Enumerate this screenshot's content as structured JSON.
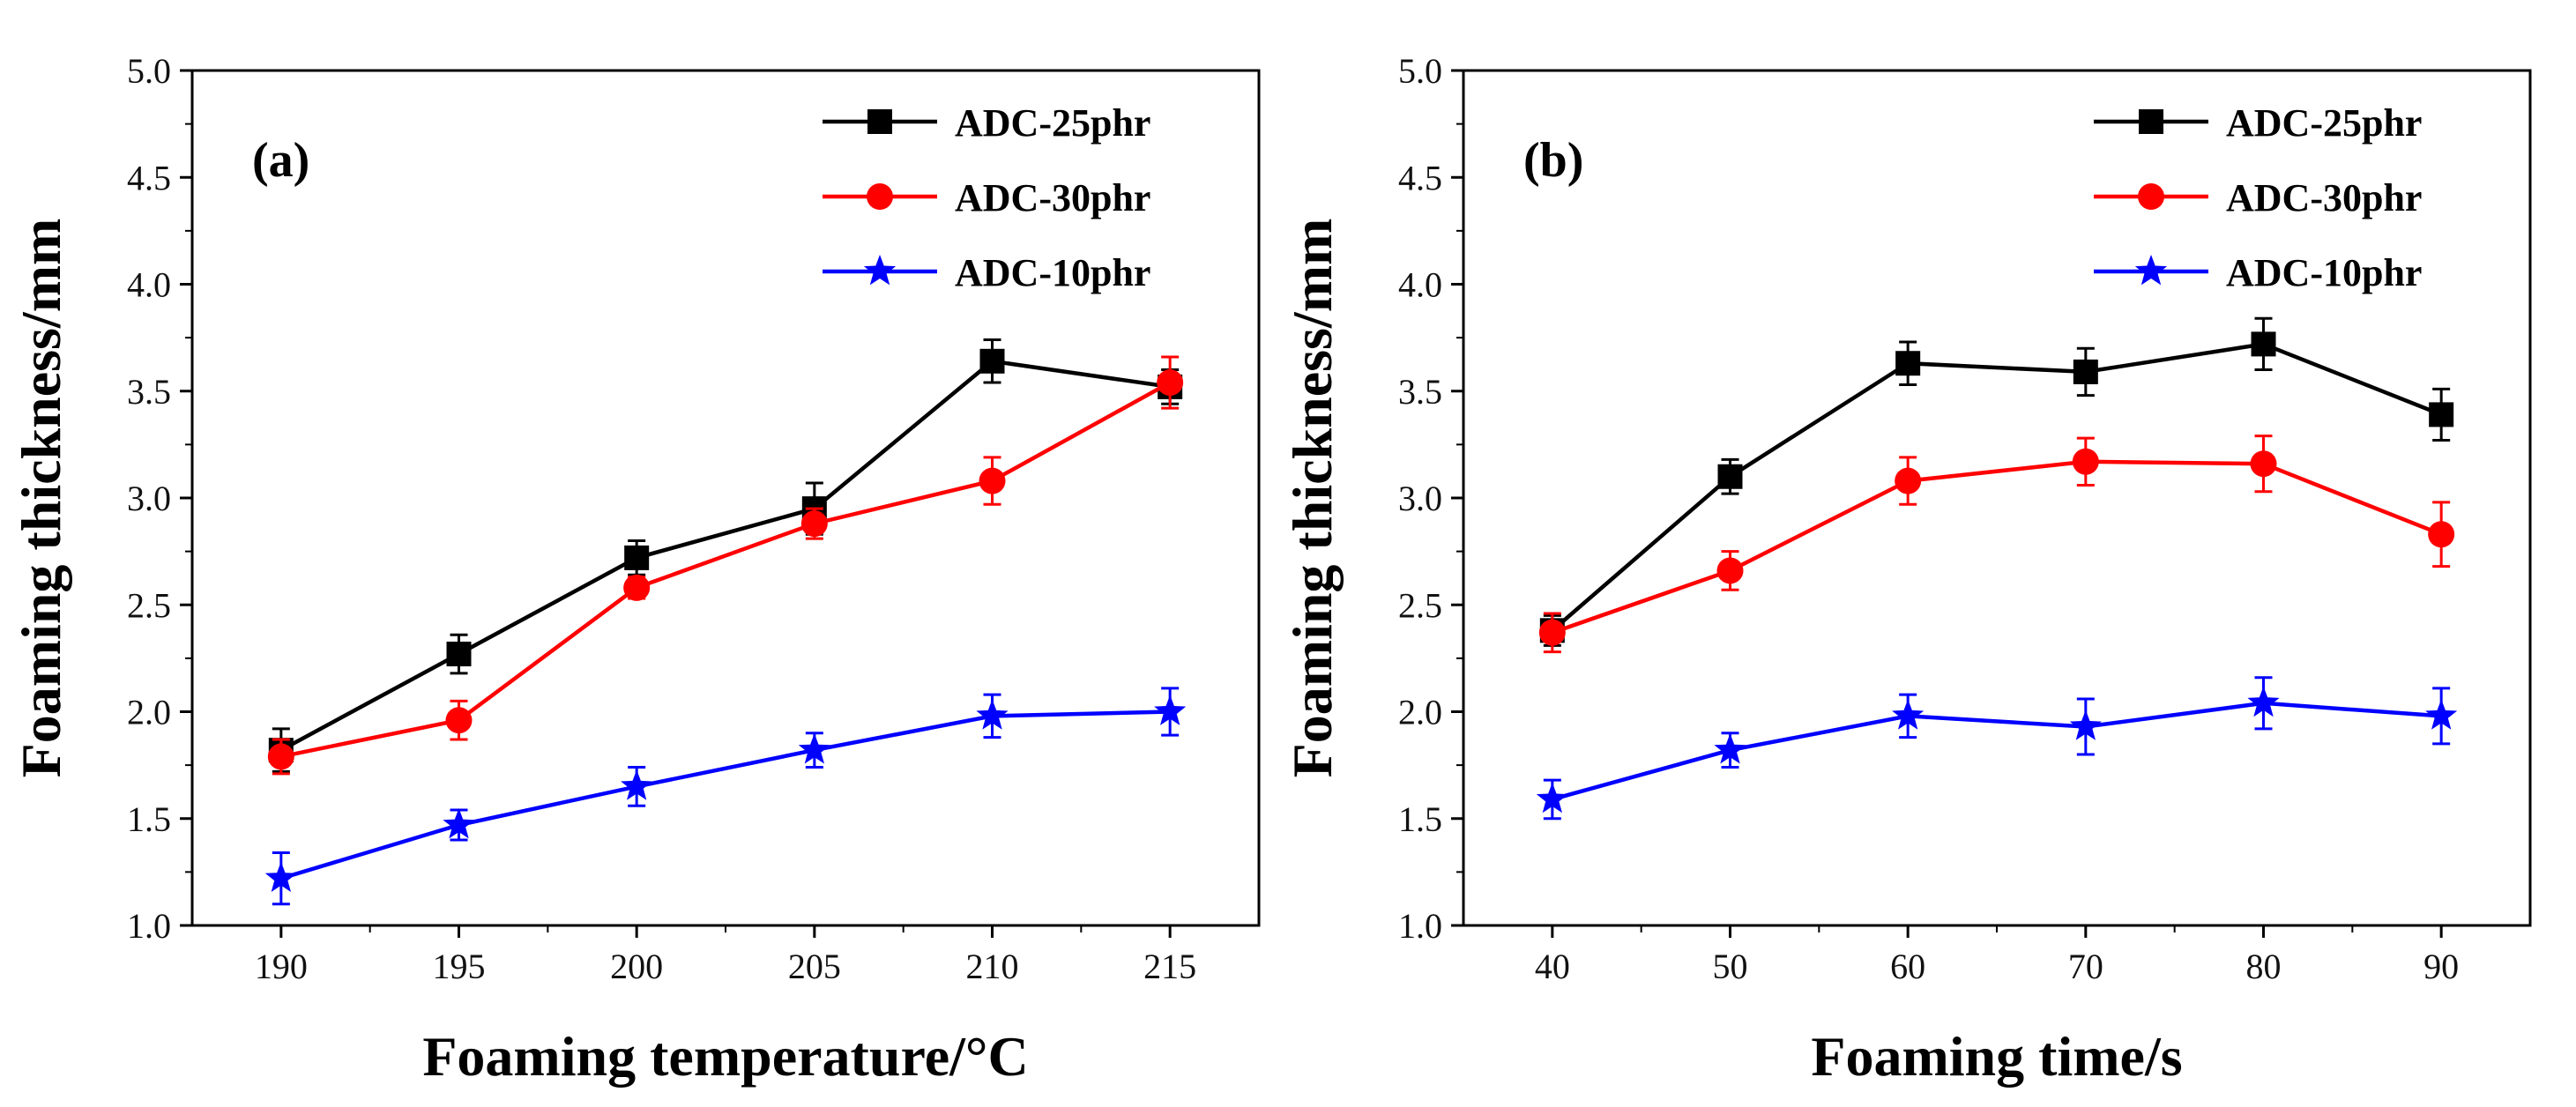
{
  "chart_data": [
    {
      "type": "line",
      "panel_label": "(a)",
      "xlabel": "Foaming temperature/°C",
      "ylabel": "Foaming thickness/mm",
      "categories": [
        "190",
        "195",
        "200",
        "205",
        "210",
        "215"
      ],
      "x": [
        190,
        195,
        200,
        205,
        210,
        215
      ],
      "xlim": [
        187.5,
        217.5
      ],
      "ylim": [
        1.0,
        5.0
      ],
      "yticks": [
        "1.0",
        "1.5",
        "2.0",
        "2.5",
        "3.0",
        "3.5",
        "4.0",
        "4.5",
        "5.0"
      ],
      "legend_position": "top-right",
      "series": [
        {
          "name": "ADC-25phr",
          "color": "#000000",
          "marker": "square",
          "values": [
            1.82,
            2.27,
            2.72,
            2.95,
            3.64,
            3.52
          ],
          "errors": [
            0.1,
            0.09,
            0.08,
            0.12,
            0.1,
            0.08
          ]
        },
        {
          "name": "ADC-30phr",
          "color": "#ff0000",
          "marker": "circle",
          "values": [
            1.79,
            1.96,
            2.58,
            2.88,
            3.08,
            3.54
          ],
          "errors": [
            0.08,
            0.09,
            0.05,
            0.07,
            0.11,
            0.12
          ]
        },
        {
          "name": "ADC-10phr",
          "color": "#0000ff",
          "marker": "star",
          "values": [
            1.22,
            1.47,
            1.65,
            1.82,
            1.98,
            2.0
          ],
          "errors": [
            0.12,
            0.07,
            0.09,
            0.08,
            0.1,
            0.11
          ]
        }
      ]
    },
    {
      "type": "line",
      "panel_label": "(b)",
      "xlabel": "Foaming time/s",
      "ylabel": "Foaming thickness/mm",
      "categories": [
        "40",
        "50",
        "60",
        "70",
        "80",
        "90"
      ],
      "x": [
        40,
        50,
        60,
        70,
        80,
        90
      ],
      "xlim": [
        35,
        95
      ],
      "ylim": [
        1.0,
        5.0
      ],
      "yticks": [
        "1.0",
        "1.5",
        "2.0",
        "2.5",
        "3.0",
        "3.5",
        "4.0",
        "4.5",
        "5.0"
      ],
      "legend_position": "top-right",
      "series": [
        {
          "name": "ADC-25phr",
          "color": "#000000",
          "marker": "square",
          "values": [
            2.38,
            3.1,
            3.63,
            3.59,
            3.72,
            3.39
          ],
          "errors": [
            0.07,
            0.08,
            0.1,
            0.11,
            0.12,
            0.12
          ]
        },
        {
          "name": "ADC-30phr",
          "color": "#ff0000",
          "marker": "circle",
          "values": [
            2.37,
            2.66,
            3.08,
            3.17,
            3.16,
            2.83
          ],
          "errors": [
            0.09,
            0.09,
            0.11,
            0.11,
            0.13,
            0.15
          ]
        },
        {
          "name": "ADC-10phr",
          "color": "#0000ff",
          "marker": "star",
          "values": [
            1.59,
            1.82,
            1.98,
            1.93,
            2.04,
            1.98
          ],
          "errors": [
            0.09,
            0.08,
            0.1,
            0.13,
            0.12,
            0.13
          ]
        }
      ]
    }
  ]
}
